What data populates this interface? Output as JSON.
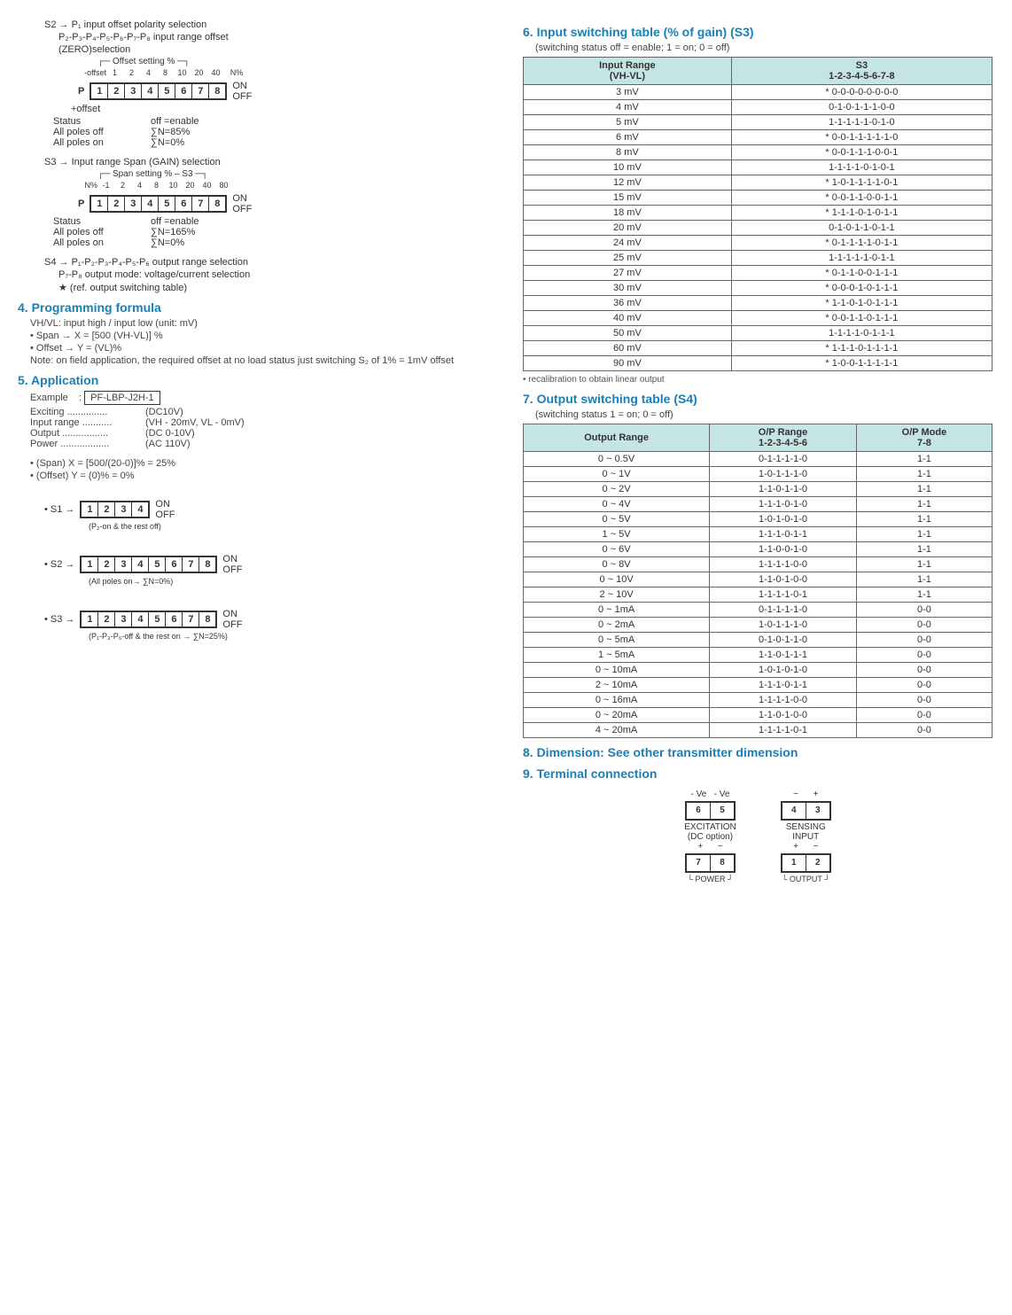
{
  "s2": {
    "line1": "S2 → P₁ input offset polarity selection",
    "line2": "P₂-P₃-P₄-P₅-P₆-P₇-P₈ input range offset",
    "line3": "(ZERO)selection",
    "brkt": "Offset setting %",
    "topoff": "-offset",
    "nums": [
      "1",
      "2",
      "4",
      "8",
      "10",
      "20",
      "40"
    ],
    "npct": "N%",
    "on": "ON",
    "off": "OFF",
    "P": "P",
    "plus": "+offset",
    "stat1a": "Status",
    "stat1b": "off =enable",
    "stat2a": "All poles off",
    "stat2b": "∑N=85%",
    "stat3a": "All poles on",
    "stat3b": "∑N=0%"
  },
  "s3": {
    "line1": "S3 → Input range Span (GAIN) selection",
    "brkt": "Span setting % – S3",
    "nlabel": "N%",
    "nums": [
      "-1",
      "2",
      "4",
      "8",
      "10",
      "20",
      "40",
      "80"
    ],
    "on": "ON",
    "off": "OFF",
    "P": "P",
    "stat1a": "Status",
    "stat1b": "off =enable",
    "stat2a": "All poles off",
    "stat2b": "∑N=165%",
    "stat3a": "All poles on",
    "stat3b": "∑N=0%"
  },
  "s4": {
    "line1": "S4 → P₁-P₂-P₃-P₄-P₅-P₆ output range selection",
    "line2": "P₇-P₈ output mode: voltage/current selection",
    "line3": "★ (ref. output switching table)"
  },
  "sec4": {
    "title": "4. Programming formula",
    "l1": "VH/VL: input high / input low   (unit: mV)",
    "l2": "• Span → X = [500 (VH-VL)] %",
    "l3": "• Offset → Y = (VL)%",
    "note": "Note: on field application, the required offset at no load status just switching S₂ of 1% = 1mV offset"
  },
  "sec5": {
    "title": "5. Application",
    "ex": "Example",
    "exval": "PF-LBP-J2H-1",
    "r1a": "Exciting ...............",
    "r1b": "(DC10V)",
    "r2a": "Input range ...........",
    "r2b": "(VH - 20mV, VL - 0mV)",
    "r3a": "Output .................",
    "r3b": "(DC 0-10V)",
    "r4a": "Power ..................",
    "r4b": "(AC 110V)",
    "span": "• (Span)  X  = [500/(20-0)]% = 25%",
    "offset": "• (Offset) Y  = (0)% = 0%",
    "s1l": "• S1 →",
    "s1n": "(P₂-on & the rest off)",
    "s2l": "• S2 →",
    "s2n": "(All poles on→ ∑N=0%)",
    "s3l": "• S3 →",
    "s3n": "(P₁-P₃-P₆-off & the rest on → ∑N=25%)",
    "on": "ON",
    "off": "OFF"
  },
  "sec6": {
    "title": "6. Input switching table (% of gain) (S3)",
    "sub": "(switching status off = enable; 1 = on; 0 = off)",
    "h1": "Input Range",
    "h1b": "(VH-VL)",
    "h2": "S3",
    "h2b": "1-2-3-4-5-6-7-8",
    "rows": [
      [
        "3 mV",
        "* 0-0-0-0-0-0-0-0"
      ],
      [
        "4 mV",
        "0-1-0-1-1-1-0-0"
      ],
      [
        "5 mV",
        "1-1-1-1-1-0-1-0"
      ],
      [
        "6 mV",
        "* 0-0-1-1-1-1-1-0"
      ],
      [
        "8 mV",
        "* 0-0-1-1-1-0-0-1"
      ],
      [
        "10 mV",
        "1-1-1-1-0-1-0-1"
      ],
      [
        "12 mV",
        "* 1-0-1-1-1-1-0-1"
      ],
      [
        "15 mV",
        "* 0-0-1-1-0-0-1-1"
      ],
      [
        "18 mV",
        "* 1-1-1-0-1-0-1-1"
      ],
      [
        "20 mV",
        "0-1-0-1-1-0-1-1"
      ],
      [
        "24 mV",
        "* 0-1-1-1-1-0-1-1"
      ],
      [
        "25 mV",
        "1-1-1-1-1-0-1-1"
      ],
      [
        "27 mV",
        "* 0-1-1-0-0-1-1-1"
      ],
      [
        "30 mV",
        "* 0-0-0-1-0-1-1-1"
      ],
      [
        "36 mV",
        "* 1-1-0-1-0-1-1-1"
      ],
      [
        "40 mV",
        "* 0-0-1-1-0-1-1-1"
      ],
      [
        "50 mV",
        "1-1-1-1-0-1-1-1"
      ],
      [
        "60 mV",
        "* 1-1-1-0-1-1-1-1"
      ],
      [
        "90 mV",
        "* 1-0-0-1-1-1-1-1"
      ]
    ],
    "note": "• recalibration to obtain linear output"
  },
  "sec7": {
    "title": "7. Output switching table (S4)",
    "sub": "(switching status 1 = on; 0 = off)",
    "h1": "Output Range",
    "h2": "O/P Range",
    "h2b": "1-2-3-4-5-6",
    "h3": "O/P Mode",
    "h3b": "7-8",
    "rows": [
      [
        "0 ~ 0.5V",
        "0-1-1-1-1-0",
        "1-1"
      ],
      [
        "0 ~ 1V",
        "1-0-1-1-1-0",
        "1-1"
      ],
      [
        "0 ~ 2V",
        "1-1-0-1-1-0",
        "1-1"
      ],
      [
        "0 ~ 4V",
        "1-1-1-0-1-0",
        "1-1"
      ],
      [
        "0 ~ 5V",
        "1-0-1-0-1-0",
        "1-1"
      ],
      [
        "1 ~ 5V",
        "1-1-1-0-1-1",
        "1-1"
      ],
      [
        "0 ~ 6V",
        "1-1-0-0-1-0",
        "1-1"
      ],
      [
        "0 ~ 8V",
        "1-1-1-1-0-0",
        "1-1"
      ],
      [
        "0 ~ 10V",
        "1-1-0-1-0-0",
        "1-1"
      ],
      [
        "2 ~ 10V",
        "1-1-1-1-0-1",
        "1-1"
      ],
      [
        "0 ~ 1mA",
        "0-1-1-1-1-0",
        "0-0"
      ],
      [
        "0 ~ 2mA",
        "1-0-1-1-1-0",
        "0-0"
      ],
      [
        "0 ~ 5mA",
        "0-1-0-1-1-0",
        "0-0"
      ],
      [
        "1 ~ 5mA",
        "1-1-0-1-1-1",
        "0-0"
      ],
      [
        "0 ~ 10mA",
        "1-0-1-0-1-0",
        "0-0"
      ],
      [
        "2 ~ 10mA",
        "1-1-1-0-1-1",
        "0-0"
      ],
      [
        "0 ~ 16mA",
        "1-1-1-1-0-0",
        "0-0"
      ],
      [
        "0 ~ 20mA",
        "1-1-0-1-0-0",
        "0-0"
      ],
      [
        "4 ~ 20mA",
        "1-1-1-1-0-1",
        "0-0"
      ]
    ]
  },
  "sec8": "8. Dimension: See other transmitter dimension",
  "sec9": {
    "title": "9. Terminal connection",
    "exc": "EXCITATION",
    "sen": "SENSING",
    "inp": "INPUT",
    "dc": "(DC option)",
    "pow": "POWER",
    "out": "OUTPUT",
    "mve": "- Ve",
    "plus": "+",
    "minus": "−",
    "t6": "6",
    "t5": "5",
    "t4": "4",
    "t3": "3",
    "t7": "7",
    "t8": "8",
    "t1": "1",
    "t2": "2"
  }
}
